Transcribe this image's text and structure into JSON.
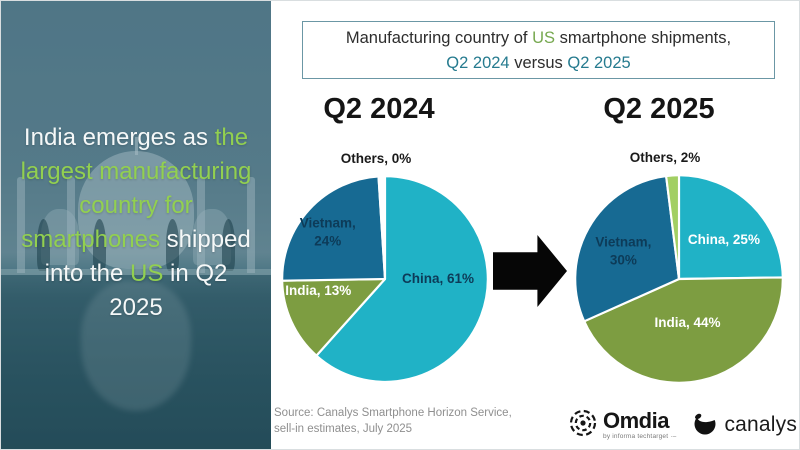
{
  "title_box": {
    "l1a": "Manufacturing country of ",
    "l1b": "US",
    "l1c": " smartphone shipments,",
    "l2a": "Q2 2024",
    "l2b": " versus ",
    "l2c": "Q2 2025"
  },
  "left_panel": {
    "l1w": "India emerges as ",
    "l1g": "the",
    "l2g": "largest manufacturing",
    "l3g": "country for",
    "l4g": "smartphones",
    "l4w": " shipped",
    "l5w1": "into the ",
    "l5g": "US",
    "l5w2": " in Q2",
    "l6w": "2025"
  },
  "colors": {
    "china_teal": "#20b2c6",
    "vietnam_blue": "#176a93",
    "india_green": "#7d9d41",
    "others_light_green": "#a2cf63",
    "accent_green": "#92d050",
    "title_teal": "#267b8f",
    "title_green": "#76a84f"
  },
  "chart_data": [
    {
      "type": "pie",
      "title": "Q2 2024",
      "slices": [
        {
          "label": "China",
          "value": 61,
          "display": "China, 61%",
          "color": "#20b2c6"
        },
        {
          "label": "India",
          "value": 13,
          "display": "India, 13%",
          "color": "#7d9d41"
        },
        {
          "label": "Vietnam",
          "value": 24,
          "display": "Vietnam, 24%",
          "color": "#176a93"
        },
        {
          "label": "Others",
          "value": 0,
          "display": "Others, 0%",
          "color": "#ffffff",
          "draw": 1
        }
      ]
    },
    {
      "type": "pie",
      "title": "Q2 2025",
      "slices": [
        {
          "label": "China",
          "value": 25,
          "display": "China, 25%",
          "color": "#20b2c6"
        },
        {
          "label": "India",
          "value": 44,
          "display": "India, 44%",
          "color": "#7d9d41"
        },
        {
          "label": "Vietnam",
          "value": 30,
          "display": "Vietnam, 30%",
          "color": "#176a93"
        },
        {
          "label": "Others",
          "value": 2,
          "display": "Others, 2%",
          "color": "#a2cf63"
        }
      ]
    }
  ],
  "footer": {
    "source_line1": "Source: Canalys Smartphone Horizon Service,",
    "source_line2": "sell-in estimates, July 2025",
    "omdia_name": "Omdia",
    "omdia_tagline": "by informa techtarget ·–",
    "canalys_name": "canalys"
  }
}
